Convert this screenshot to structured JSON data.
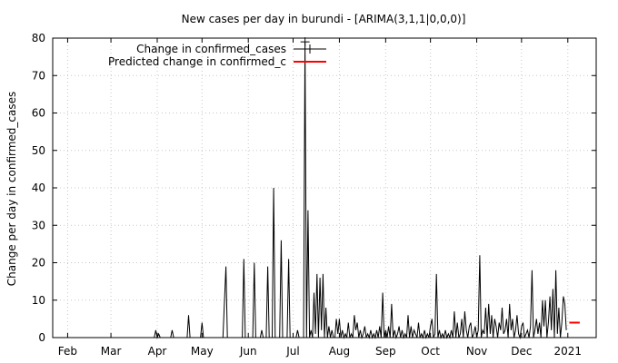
{
  "chart_data": {
    "type": "line",
    "title": "New cases per day in burundi -  [ARIMA(3,1,1|0,0,0)]",
    "xlabel": "",
    "ylabel": "Change per day in confirmed_cases",
    "ylim": [
      0,
      80
    ],
    "yticks": [
      0,
      10,
      20,
      30,
      40,
      50,
      60,
      70,
      80
    ],
    "xlim": [
      "2020-01-22",
      "2021-01-20"
    ],
    "xticks": [
      {
        "label": "Feb",
        "date": "2020-02-01"
      },
      {
        "label": "Mar",
        "date": "2020-03-01"
      },
      {
        "label": "Apr",
        "date": "2020-04-01"
      },
      {
        "label": "May",
        "date": "2020-05-01"
      },
      {
        "label": "Jun",
        "date": "2020-06-01"
      },
      {
        "label": "Jul",
        "date": "2020-07-01"
      },
      {
        "label": "Aug",
        "date": "2020-08-01"
      },
      {
        "label": "Sep",
        "date": "2020-09-01"
      },
      {
        "label": "Oct",
        "date": "2020-10-01"
      },
      {
        "label": "Nov",
        "date": "2020-11-01"
      },
      {
        "label": "Dec",
        "date": "2020-12-01"
      },
      {
        "label": "2021",
        "date": "2021-01-01"
      }
    ],
    "grid": true,
    "legend_position": "top-left",
    "series": [
      {
        "name": "Change in confirmed_cases",
        "color": "#000000",
        "marker_at_max": "plus",
        "points": [
          [
            "2020-01-22",
            0
          ],
          [
            "2020-03-30",
            0
          ],
          [
            "2020-03-31",
            2
          ],
          [
            "2020-04-01",
            0
          ],
          [
            "2020-04-02",
            1
          ],
          [
            "2020-04-03",
            0
          ],
          [
            "2020-04-10",
            0
          ],
          [
            "2020-04-11",
            2
          ],
          [
            "2020-04-12",
            0
          ],
          [
            "2020-04-21",
            0
          ],
          [
            "2020-04-22",
            6
          ],
          [
            "2020-04-23",
            0
          ],
          [
            "2020-04-30",
            0
          ],
          [
            "2020-05-01",
            4
          ],
          [
            "2020-05-02",
            0
          ],
          [
            "2020-05-15",
            0
          ],
          [
            "2020-05-17",
            19
          ],
          [
            "2020-05-18",
            0
          ],
          [
            "2020-05-28",
            0
          ],
          [
            "2020-05-29",
            21
          ],
          [
            "2020-05-30",
            0
          ],
          [
            "2020-06-04",
            0
          ],
          [
            "2020-06-05",
            20
          ],
          [
            "2020-06-06",
            0
          ],
          [
            "2020-06-09",
            0
          ],
          [
            "2020-06-10",
            2
          ],
          [
            "2020-06-11",
            0
          ],
          [
            "2020-06-13",
            0
          ],
          [
            "2020-06-14",
            19
          ],
          [
            "2020-06-15",
            0
          ],
          [
            "2020-06-17",
            0
          ],
          [
            "2020-06-18",
            40
          ],
          [
            "2020-06-19",
            0
          ],
          [
            "2020-06-22",
            0
          ],
          [
            "2020-06-23",
            26
          ],
          [
            "2020-06-24",
            0
          ],
          [
            "2020-06-27",
            0
          ],
          [
            "2020-06-28",
            21
          ],
          [
            "2020-06-29",
            0
          ],
          [
            "2020-07-03",
            0
          ],
          [
            "2020-07-04",
            2
          ],
          [
            "2020-07-05",
            0
          ],
          [
            "2020-07-08",
            0
          ],
          [
            "2020-07-09",
            79
          ],
          [
            "2020-07-10",
            0
          ],
          [
            "2020-07-11",
            34
          ],
          [
            "2020-07-12",
            0
          ],
          [
            "2020-07-13",
            2
          ],
          [
            "2020-07-14",
            0
          ],
          [
            "2020-07-15",
            12
          ],
          [
            "2020-07-16",
            1
          ],
          [
            "2020-07-17",
            17
          ],
          [
            "2020-07-18",
            0
          ],
          [
            "2020-07-19",
            16
          ],
          [
            "2020-07-20",
            2
          ],
          [
            "2020-07-21",
            17
          ],
          [
            "2020-07-22",
            0
          ],
          [
            "2020-07-23",
            8
          ],
          [
            "2020-07-24",
            0
          ],
          [
            "2020-07-25",
            3
          ],
          [
            "2020-07-26",
            0
          ],
          [
            "2020-07-27",
            2
          ],
          [
            "2020-07-28",
            0
          ],
          [
            "2020-07-29",
            0
          ],
          [
            "2020-07-30",
            5
          ],
          [
            "2020-07-31",
            1
          ],
          [
            "2020-08-01",
            5
          ],
          [
            "2020-08-02",
            0
          ],
          [
            "2020-08-03",
            2
          ],
          [
            "2020-08-04",
            0
          ],
          [
            "2020-08-05",
            1
          ],
          [
            "2020-08-06",
            0
          ],
          [
            "2020-08-07",
            4
          ],
          [
            "2020-08-08",
            0
          ],
          [
            "2020-08-09",
            1
          ],
          [
            "2020-08-10",
            0
          ],
          [
            "2020-08-11",
            6
          ],
          [
            "2020-08-12",
            2
          ],
          [
            "2020-08-13",
            4
          ],
          [
            "2020-08-14",
            0
          ],
          [
            "2020-08-15",
            2
          ],
          [
            "2020-08-16",
            0
          ],
          [
            "2020-08-17",
            1
          ],
          [
            "2020-08-18",
            3
          ],
          [
            "2020-08-19",
            0
          ],
          [
            "2020-08-20",
            1
          ],
          [
            "2020-08-21",
            0
          ],
          [
            "2020-08-22",
            2
          ],
          [
            "2020-08-23",
            0
          ],
          [
            "2020-08-24",
            1
          ],
          [
            "2020-08-25",
            0
          ],
          [
            "2020-08-26",
            2
          ],
          [
            "2020-08-27",
            0
          ],
          [
            "2020-08-28",
            3
          ],
          [
            "2020-08-29",
            0
          ],
          [
            "2020-08-30",
            12
          ],
          [
            "2020-08-31",
            0
          ],
          [
            "2020-09-01",
            2
          ],
          [
            "2020-09-02",
            0
          ],
          [
            "2020-09-03",
            3
          ],
          [
            "2020-09-04",
            0
          ],
          [
            "2020-09-05",
            9
          ],
          [
            "2020-09-06",
            0
          ],
          [
            "2020-09-07",
            2
          ],
          [
            "2020-09-08",
            0
          ],
          [
            "2020-09-09",
            1
          ],
          [
            "2020-09-10",
            3
          ],
          [
            "2020-09-11",
            0
          ],
          [
            "2020-09-12",
            2
          ],
          [
            "2020-09-13",
            0
          ],
          [
            "2020-09-14",
            1
          ],
          [
            "2020-09-15",
            0
          ],
          [
            "2020-09-16",
            6
          ],
          [
            "2020-09-17",
            0
          ],
          [
            "2020-09-18",
            3
          ],
          [
            "2020-09-19",
            0
          ],
          [
            "2020-09-20",
            2
          ],
          [
            "2020-09-21",
            1
          ],
          [
            "2020-09-22",
            0
          ],
          [
            "2020-09-23",
            4
          ],
          [
            "2020-09-24",
            0
          ],
          [
            "2020-09-25",
            1
          ],
          [
            "2020-09-26",
            0
          ],
          [
            "2020-09-27",
            2
          ],
          [
            "2020-09-28",
            0
          ],
          [
            "2020-09-29",
            1
          ],
          [
            "2020-09-30",
            0
          ],
          [
            "2020-10-01",
            3
          ],
          [
            "2020-10-02",
            5
          ],
          [
            "2020-10-03",
            0
          ],
          [
            "2020-10-04",
            1
          ],
          [
            "2020-10-05",
            17
          ],
          [
            "2020-10-06",
            0
          ],
          [
            "2020-10-07",
            2
          ],
          [
            "2020-10-08",
            0
          ],
          [
            "2020-10-09",
            1
          ],
          [
            "2020-10-10",
            0
          ],
          [
            "2020-10-11",
            2
          ],
          [
            "2020-10-12",
            0
          ],
          [
            "2020-10-13",
            1
          ],
          [
            "2020-10-14",
            0
          ],
          [
            "2020-10-15",
            2
          ],
          [
            "2020-10-16",
            0
          ],
          [
            "2020-10-17",
            7
          ],
          [
            "2020-10-18",
            0
          ],
          [
            "2020-10-19",
            4
          ],
          [
            "2020-10-20",
            0
          ],
          [
            "2020-10-21",
            1
          ],
          [
            "2020-10-22",
            5
          ],
          [
            "2020-10-23",
            0
          ],
          [
            "2020-10-24",
            7
          ],
          [
            "2020-10-25",
            2
          ],
          [
            "2020-10-26",
            0
          ],
          [
            "2020-10-27",
            3
          ],
          [
            "2020-10-28",
            4
          ],
          [
            "2020-10-29",
            0
          ],
          [
            "2020-10-30",
            1
          ],
          [
            "2020-10-31",
            3
          ],
          [
            "2020-11-01",
            0
          ],
          [
            "2020-11-02",
            2
          ],
          [
            "2020-11-03",
            22
          ],
          [
            "2020-11-04",
            0
          ],
          [
            "2020-11-05",
            2
          ],
          [
            "2020-11-06",
            1
          ],
          [
            "2020-11-07",
            8
          ],
          [
            "2020-11-08",
            0
          ],
          [
            "2020-11-09",
            9
          ],
          [
            "2020-11-10",
            1
          ],
          [
            "2020-11-11",
            6
          ],
          [
            "2020-11-12",
            0
          ],
          [
            "2020-11-13",
            5
          ],
          [
            "2020-11-14",
            3
          ],
          [
            "2020-11-15",
            0
          ],
          [
            "2020-11-16",
            4
          ],
          [
            "2020-11-17",
            2
          ],
          [
            "2020-11-18",
            8
          ],
          [
            "2020-11-19",
            1
          ],
          [
            "2020-11-20",
            2
          ],
          [
            "2020-11-21",
            5
          ],
          [
            "2020-11-22",
            0
          ],
          [
            "2020-11-23",
            9
          ],
          [
            "2020-11-24",
            2
          ],
          [
            "2020-11-25",
            5
          ],
          [
            "2020-11-26",
            0
          ],
          [
            "2020-11-27",
            2
          ],
          [
            "2020-11-28",
            6
          ],
          [
            "2020-11-29",
            1
          ],
          [
            "2020-11-30",
            0
          ],
          [
            "2020-12-01",
            3
          ],
          [
            "2020-12-02",
            4
          ],
          [
            "2020-12-03",
            0
          ],
          [
            "2020-12-04",
            1
          ],
          [
            "2020-12-05",
            2
          ],
          [
            "2020-12-06",
            0
          ],
          [
            "2020-12-07",
            3
          ],
          [
            "2020-12-08",
            18
          ],
          [
            "2020-12-09",
            0
          ],
          [
            "2020-12-10",
            2
          ],
          [
            "2020-12-11",
            5
          ],
          [
            "2020-12-12",
            1
          ],
          [
            "2020-12-13",
            4
          ],
          [
            "2020-12-14",
            0
          ],
          [
            "2020-12-15",
            10
          ],
          [
            "2020-12-16",
            3
          ],
          [
            "2020-12-17",
            10
          ],
          [
            "2020-12-18",
            0
          ],
          [
            "2020-12-19",
            4
          ],
          [
            "2020-12-20",
            11
          ],
          [
            "2020-12-21",
            2
          ],
          [
            "2020-12-22",
            13
          ],
          [
            "2020-12-23",
            0
          ],
          [
            "2020-12-24",
            18
          ],
          [
            "2020-12-25",
            1
          ],
          [
            "2020-12-26",
            8
          ],
          [
            "2020-12-27",
            0
          ],
          [
            "2020-12-28",
            4
          ],
          [
            "2020-12-29",
            11
          ],
          [
            "2020-12-30",
            9
          ],
          [
            "2020-12-31",
            2
          ]
        ]
      },
      {
        "name": "Predicted change in confirmed_c",
        "color": "#ff0000",
        "points": [
          [
            "2021-01-02",
            4
          ],
          [
            "2021-01-09",
            4
          ]
        ]
      }
    ]
  }
}
